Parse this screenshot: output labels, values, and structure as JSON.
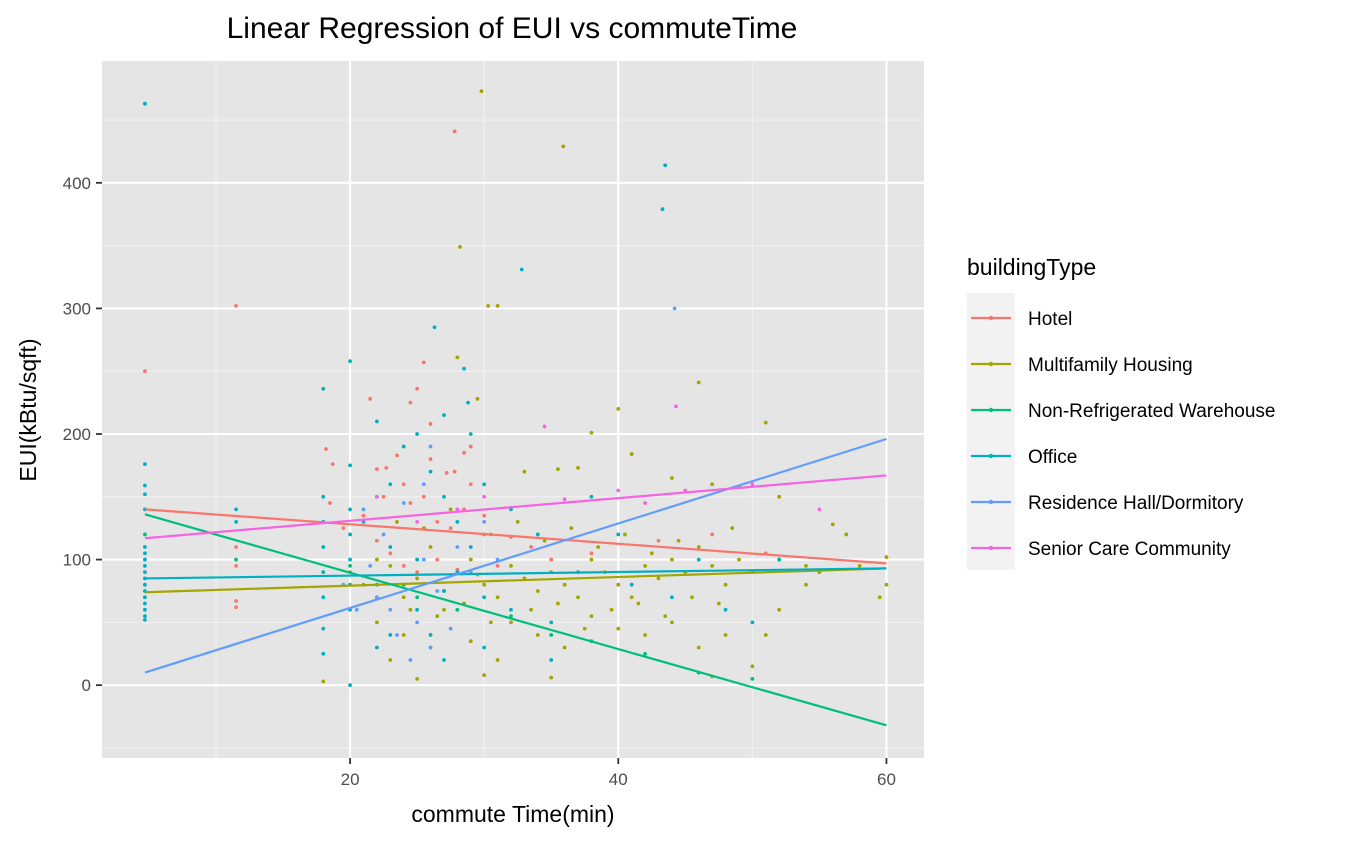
{
  "chart_data": {
    "type": "scatter",
    "title": "Linear Regression of EUI vs commuteTime",
    "xlabel": "commute Time(min)",
    "ylabel": "EUI(kBtu/sqft)",
    "xlim": [
      1.5,
      62.8
    ],
    "ylim": [
      -58,
      497
    ],
    "x_ticks": [
      20,
      40,
      60
    ],
    "y_ticks": [
      0,
      100,
      200,
      300,
      400
    ],
    "grid": true,
    "legend": {
      "title": "buildingType",
      "position": "right"
    },
    "colors": {
      "panel_background": "#e5e5e5",
      "grid_major": "#ffffff",
      "grid_minor": "#f1f1f1"
    },
    "series": [
      {
        "name": "Hotel",
        "color": "#f8766d",
        "regression": {
          "x": [
            4.7,
            60
          ],
          "y": [
            140,
            97
          ]
        },
        "points": [
          [
            4.7,
            250
          ],
          [
            11.5,
            302
          ],
          [
            27.8,
            441
          ],
          [
            11.5,
            95
          ],
          [
            11.5,
            62
          ],
          [
            11.5,
            67
          ],
          [
            11.5,
            110
          ],
          [
            18.2,
            188
          ],
          [
            18.7,
            176
          ],
          [
            21.5,
            228
          ],
          [
            22.0,
            172
          ],
          [
            22.7,
            173
          ],
          [
            23.5,
            183
          ],
          [
            24.5,
            225
          ],
          [
            25.0,
            236
          ],
          [
            25.5,
            257
          ],
          [
            26.0,
            208
          ],
          [
            27.2,
            169
          ],
          [
            27.8,
            170
          ],
          [
            28.5,
            185
          ],
          [
            29.0,
            190
          ],
          [
            24.0,
            160
          ],
          [
            24.5,
            145
          ],
          [
            25.5,
            150
          ],
          [
            26.5,
            130
          ],
          [
            27.5,
            125
          ],
          [
            28.5,
            140
          ],
          [
            30.0,
            120
          ],
          [
            32.0,
            118
          ],
          [
            33.5,
            110
          ],
          [
            22.0,
            115
          ],
          [
            23.0,
            105
          ],
          [
            24.0,
            95
          ],
          [
            25.0,
            90
          ],
          [
            26.5,
            100
          ],
          [
            28.0,
            92
          ],
          [
            29.5,
            88
          ],
          [
            31.0,
            95
          ],
          [
            35.0,
            100
          ],
          [
            38.0,
            105
          ],
          [
            21.0,
            135
          ],
          [
            19.5,
            125
          ],
          [
            18.5,
            145
          ],
          [
            26.0,
            180
          ],
          [
            29.0,
            160
          ],
          [
            43.0,
            115
          ],
          [
            47.0,
            120
          ],
          [
            51.0,
            105
          ],
          [
            22.5,
            150
          ],
          [
            30.0,
            135
          ]
        ]
      },
      {
        "name": "Multifamily Housing",
        "color": "#a3a500",
        "regression": {
          "x": [
            4.7,
            60
          ],
          "y": [
            74,
            93
          ]
        },
        "points": [
          [
            29.8,
            473
          ],
          [
            35.9,
            429
          ],
          [
            28.2,
            349
          ],
          [
            30.3,
            302
          ],
          [
            31.0,
            302
          ],
          [
            28.0,
            261
          ],
          [
            29.5,
            228
          ],
          [
            46.0,
            241
          ],
          [
            51.0,
            209
          ],
          [
            40.0,
            220
          ],
          [
            38.0,
            201
          ],
          [
            41.0,
            184
          ],
          [
            18.0,
            3
          ],
          [
            25.0,
            5
          ],
          [
            30.0,
            8
          ],
          [
            35.0,
            6
          ],
          [
            47.0,
            7
          ],
          [
            33.0,
            170
          ],
          [
            35.5,
            172
          ],
          [
            37.0,
            173
          ],
          [
            44.0,
            165
          ],
          [
            47.0,
            160
          ],
          [
            49.0,
            158
          ],
          [
            52.0,
            150
          ],
          [
            56.0,
            128
          ],
          [
            57.0,
            120
          ],
          [
            60.0,
            102
          ],
          [
            60.0,
            80
          ],
          [
            59.5,
            70
          ],
          [
            58.0,
            95
          ],
          [
            55.0,
            90
          ],
          [
            54.0,
            80
          ],
          [
            52.0,
            60
          ],
          [
            51.0,
            40
          ],
          [
            50.0,
            15
          ],
          [
            22.0,
            50
          ],
          [
            23.0,
            20
          ],
          [
            24.0,
            40
          ],
          [
            26.0,
            30
          ],
          [
            27.0,
            60
          ],
          [
            29.0,
            35
          ],
          [
            31.0,
            20
          ],
          [
            32.0,
            50
          ],
          [
            34.0,
            40
          ],
          [
            36.0,
            30
          ],
          [
            38.0,
            55
          ],
          [
            40.0,
            45
          ],
          [
            42.0,
            40
          ],
          [
            44.0,
            50
          ],
          [
            46.0,
            30
          ],
          [
            48.0,
            40
          ],
          [
            20.0,
            90
          ],
          [
            21.0,
            80
          ],
          [
            22.0,
            100
          ],
          [
            23.0,
            95
          ],
          [
            24.0,
            70
          ],
          [
            25.0,
            85
          ],
          [
            26.0,
            110
          ],
          [
            27.0,
            75
          ],
          [
            28.0,
            90
          ],
          [
            29.0,
            100
          ],
          [
            30.0,
            80
          ],
          [
            31.0,
            70
          ],
          [
            32.0,
            95
          ],
          [
            33.0,
            85
          ],
          [
            34.0,
            75
          ],
          [
            35.0,
            90
          ],
          [
            36.0,
            80
          ],
          [
            37.0,
            70
          ],
          [
            38.0,
            100
          ],
          [
            39.0,
            90
          ],
          [
            40.0,
            80
          ],
          [
            41.0,
            70
          ],
          [
            42.0,
            95
          ],
          [
            43.0,
            85
          ],
          [
            44.0,
            100
          ],
          [
            45.0,
            90
          ],
          [
            46.0,
            110
          ],
          [
            47.0,
            95
          ],
          [
            48.0,
            80
          ],
          [
            49.0,
            100
          ],
          [
            50.0,
            90
          ],
          [
            52.0,
            100
          ],
          [
            54.0,
            95
          ],
          [
            23.5,
            130
          ],
          [
            25.5,
            125
          ],
          [
            27.5,
            140
          ],
          [
            30.5,
            120
          ],
          [
            32.5,
            130
          ],
          [
            34.5,
            115
          ],
          [
            36.5,
            125
          ],
          [
            38.5,
            110
          ],
          [
            40.5,
            120
          ],
          [
            42.5,
            105
          ],
          [
            44.5,
            115
          ],
          [
            48.5,
            125
          ],
          [
            24.5,
            60
          ],
          [
            26.5,
            55
          ],
          [
            28.5,
            65
          ],
          [
            30.5,
            50
          ],
          [
            33.5,
            60
          ],
          [
            35.5,
            65
          ],
          [
            37.5,
            45
          ],
          [
            39.5,
            60
          ],
          [
            41.5,
            65
          ],
          [
            43.5,
            55
          ],
          [
            45.5,
            70
          ],
          [
            47.5,
            65
          ]
        ]
      },
      {
        "name": "Non-Refrigerated Warehouse",
        "color": "#00bf7d",
        "regression": {
          "x": [
            4.7,
            60
          ],
          "y": [
            136,
            -32
          ]
        },
        "points": [
          [
            4.7,
            120
          ],
          [
            11.5,
            100
          ],
          [
            20.0,
            95
          ],
          [
            22.0,
            80
          ],
          [
            25.0,
            70
          ],
          [
            28.0,
            60
          ],
          [
            32.0,
            55
          ],
          [
            35.0,
            40
          ],
          [
            38.0,
            35
          ],
          [
            42.0,
            25
          ],
          [
            46.0,
            10
          ],
          [
            50.0,
            5
          ]
        ]
      },
      {
        "name": "Office",
        "color": "#00b0c0",
        "regression": {
          "x": [
            4.7,
            60
          ],
          "y": [
            85,
            93
          ]
        },
        "points": [
          [
            4.7,
            463
          ],
          [
            43.5,
            414
          ],
          [
            43.3,
            379
          ],
          [
            32.8,
            331
          ],
          [
            26.3,
            285
          ],
          [
            20.0,
            258
          ],
          [
            18.0,
            236
          ],
          [
            28.5,
            252
          ],
          [
            27.0,
            215
          ],
          [
            28.8,
            225
          ],
          [
            4.7,
            176
          ],
          [
            4.7,
            159
          ],
          [
            4.7,
            152
          ],
          [
            4.7,
            140
          ],
          [
            4.7,
            110
          ],
          [
            4.7,
            105
          ],
          [
            4.7,
            100
          ],
          [
            4.7,
            95
          ],
          [
            4.7,
            90
          ],
          [
            4.7,
            85
          ],
          [
            4.7,
            80
          ],
          [
            4.7,
            75
          ],
          [
            4.7,
            70
          ],
          [
            4.7,
            65
          ],
          [
            4.7,
            60
          ],
          [
            4.7,
            55
          ],
          [
            4.7,
            52
          ],
          [
            11.5,
            140
          ],
          [
            11.5,
            130
          ],
          [
            18.0,
            150
          ],
          [
            18.0,
            130
          ],
          [
            18.0,
            110
          ],
          [
            18.0,
            90
          ],
          [
            18.0,
            70
          ],
          [
            18.0,
            45
          ],
          [
            18.0,
            25
          ],
          [
            20.0,
            175
          ],
          [
            20.0,
            140
          ],
          [
            20.0,
            120
          ],
          [
            20.0,
            100
          ],
          [
            20.0,
            80
          ],
          [
            20.0,
            60
          ],
          [
            20.0,
            0
          ],
          [
            21.0,
            130
          ],
          [
            22.0,
            210
          ],
          [
            22.0,
            150
          ],
          [
            22.0,
            70
          ],
          [
            22.0,
            30
          ],
          [
            23.0,
            160
          ],
          [
            23.0,
            110
          ],
          [
            24.0,
            190
          ],
          [
            24.0,
            80
          ],
          [
            25.0,
            200
          ],
          [
            25.0,
            60
          ],
          [
            26.0,
            170
          ],
          [
            26.0,
            40
          ],
          [
            27.0,
            150
          ],
          [
            27.0,
            20
          ],
          [
            28.0,
            130
          ],
          [
            28.0,
            90
          ],
          [
            29.0,
            200
          ],
          [
            29.0,
            110
          ],
          [
            30.0,
            160
          ],
          [
            30.0,
            70
          ],
          [
            32.0,
            140
          ],
          [
            32.0,
            60
          ],
          [
            34.0,
            120
          ],
          [
            35.0,
            50
          ],
          [
            37.0,
            90
          ],
          [
            38.0,
            150
          ],
          [
            40.0,
            120
          ],
          [
            41.0,
            80
          ],
          [
            44.0,
            70
          ],
          [
            46.0,
            100
          ],
          [
            48.0,
            60
          ],
          [
            50.0,
            50
          ],
          [
            52.0,
            100
          ],
          [
            35.0,
            20
          ],
          [
            30.0,
            30
          ],
          [
            23.0,
            40
          ],
          [
            25.0,
            100
          ],
          [
            27.0,
            75
          ]
        ]
      },
      {
        "name": "Residence Hall/Dormitory",
        "color": "#619cff",
        "regression": {
          "x": [
            4.7,
            60
          ],
          "y": [
            10,
            196
          ]
        },
        "points": [
          [
            44.2,
            300
          ],
          [
            21.0,
            140
          ],
          [
            22.5,
            120
          ],
          [
            23.0,
            60
          ],
          [
            24.0,
            145
          ],
          [
            25.0,
            50
          ],
          [
            25.5,
            100
          ],
          [
            26.5,
            75
          ],
          [
            27.5,
            45
          ],
          [
            21.5,
            95
          ],
          [
            22.0,
            70
          ],
          [
            23.5,
            40
          ],
          [
            24.5,
            20
          ],
          [
            26.0,
            30
          ],
          [
            20.5,
            60
          ],
          [
            19.5,
            80
          ],
          [
            28.0,
            110
          ],
          [
            29.0,
            90
          ],
          [
            30.0,
            130
          ],
          [
            26.0,
            190
          ],
          [
            25.5,
            160
          ],
          [
            31.0,
            100
          ]
        ]
      },
      {
        "name": "Senior Care Community",
        "color": "#f564e3",
        "regression": {
          "x": [
            4.7,
            60
          ],
          "y": [
            117,
            167
          ]
        },
        "points": [
          [
            44.3,
            222
          ],
          [
            34.5,
            206
          ],
          [
            30.0,
            150
          ],
          [
            40.0,
            155
          ],
          [
            45.0,
            155
          ],
          [
            50.0,
            160
          ],
          [
            28.0,
            140
          ],
          [
            36.0,
            148
          ],
          [
            42.0,
            145
          ],
          [
            22.0,
            150
          ],
          [
            55.0,
            140
          ],
          [
            25.0,
            130
          ]
        ]
      }
    ]
  }
}
